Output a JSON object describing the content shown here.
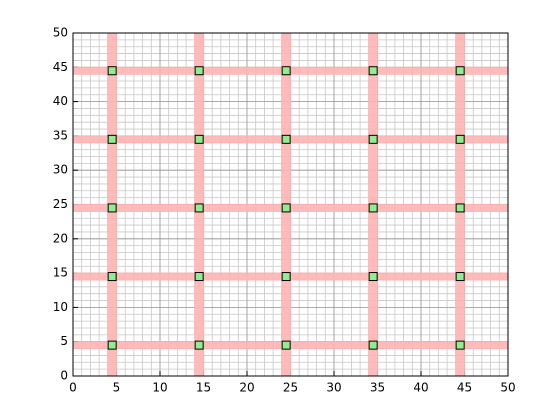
{
  "chart_data": {
    "type": "scatter",
    "x": [
      4.5,
      14.5,
      24.5,
      34.5,
      44.5,
      4.5,
      14.5,
      24.5,
      34.5,
      44.5,
      4.5,
      14.5,
      24.5,
      34.5,
      44.5,
      4.5,
      14.5,
      24.5,
      34.5,
      44.5,
      4.5,
      14.5,
      24.5,
      34.5,
      44.5
    ],
    "y": [
      4.5,
      4.5,
      4.5,
      4.5,
      4.5,
      14.5,
      14.5,
      14.5,
      14.5,
      14.5,
      24.5,
      24.5,
      24.5,
      24.5,
      24.5,
      34.5,
      34.5,
      34.5,
      34.5,
      34.5,
      44.5,
      44.5,
      44.5,
      44.5,
      44.5
    ],
    "color": "#90ee90",
    "edge_color": "#000000",
    "highlight_x": [
      4.5,
      14.5,
      24.5,
      34.5,
      44.5
    ],
    "highlight_y": [
      4.5,
      14.5,
      24.5,
      34.5,
      44.5
    ],
    "highlight_color": "#ffb3b3",
    "xlim": [
      0,
      50
    ],
    "ylim": [
      0,
      50
    ],
    "xticks": [
      0,
      5,
      10,
      15,
      20,
      25,
      30,
      35,
      40,
      45,
      50
    ],
    "yticks": [
      0,
      5,
      10,
      15,
      20,
      25,
      30,
      35,
      40,
      45,
      50
    ],
    "grid": true,
    "minor_grid_step": 1
  }
}
